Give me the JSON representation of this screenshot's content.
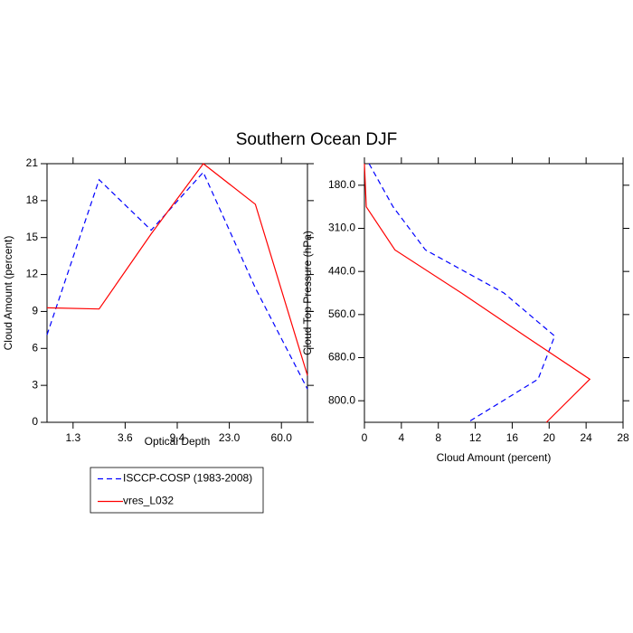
{
  "title": "Southern Ocean DJF",
  "chart_data": [
    {
      "type": "line",
      "orientation": "vertical",
      "xlabel": "Optical Depth",
      "ylabel": "Cloud Amount (percent)",
      "x": [
        0,
        1,
        2,
        3,
        4,
        5
      ],
      "xlim": [
        0,
        5
      ],
      "xticks": [
        {
          "value": 0.5,
          "label": "1.3"
        },
        {
          "value": 1.5,
          "label": "3.6"
        },
        {
          "value": 2.5,
          "label": "9.4"
        },
        {
          "value": 3.5,
          "label": "23.0"
        },
        {
          "value": 4.5,
          "label": "60.0"
        }
      ],
      "ylim": [
        0,
        21
      ],
      "yticks": [
        0,
        3,
        6,
        9,
        12,
        15,
        18,
        21
      ],
      "series": [
        {
          "name": "ISCCP-COSP (1983-2008)",
          "color": "#0000ff",
          "dash": true,
          "values": [
            7.1,
            19.7,
            15.6,
            20.3,
            10.9,
            2.7
          ]
        },
        {
          "name": "vres_L032",
          "color": "#ff0000",
          "dash": false,
          "values": [
            9.3,
            9.2,
            15.3,
            21.0,
            17.7,
            3.8
          ]
        }
      ],
      "legend": "below"
    },
    {
      "type": "line",
      "orientation": "horizontal",
      "xlabel": "Cloud Amount (percent)",
      "ylabel": "Cloud Top Pressure (hPa)",
      "y": [
        0,
        1,
        2,
        3,
        4,
        5,
        6
      ],
      "ylim": [
        6,
        0
      ],
      "yticks": [
        {
          "value": 0.5,
          "label": "180.0"
        },
        {
          "value": 1.5,
          "label": "310.0"
        },
        {
          "value": 2.5,
          "label": "440.0"
        },
        {
          "value": 3.5,
          "label": "560.0"
        },
        {
          "value": 4.5,
          "label": "680.0"
        },
        {
          "value": 5.5,
          "label": "800.0"
        }
      ],
      "xlim": [
        0,
        28
      ],
      "xticks": [
        0,
        4,
        8,
        12,
        16,
        20,
        24,
        28
      ],
      "series": [
        {
          "name": "ISCCP-COSP (1983-2008)",
          "color": "#0000ff",
          "dash": true,
          "values": [
            0.5,
            3.1,
            6.6,
            15.1,
            20.6,
            18.8,
            11.2
          ]
        },
        {
          "name": "vres_L032",
          "color": "#ff0000",
          "dash": false,
          "values": [
            0.0,
            0.2,
            3.3,
            10.5,
            17.4,
            24.4,
            19.7
          ]
        }
      ]
    }
  ]
}
